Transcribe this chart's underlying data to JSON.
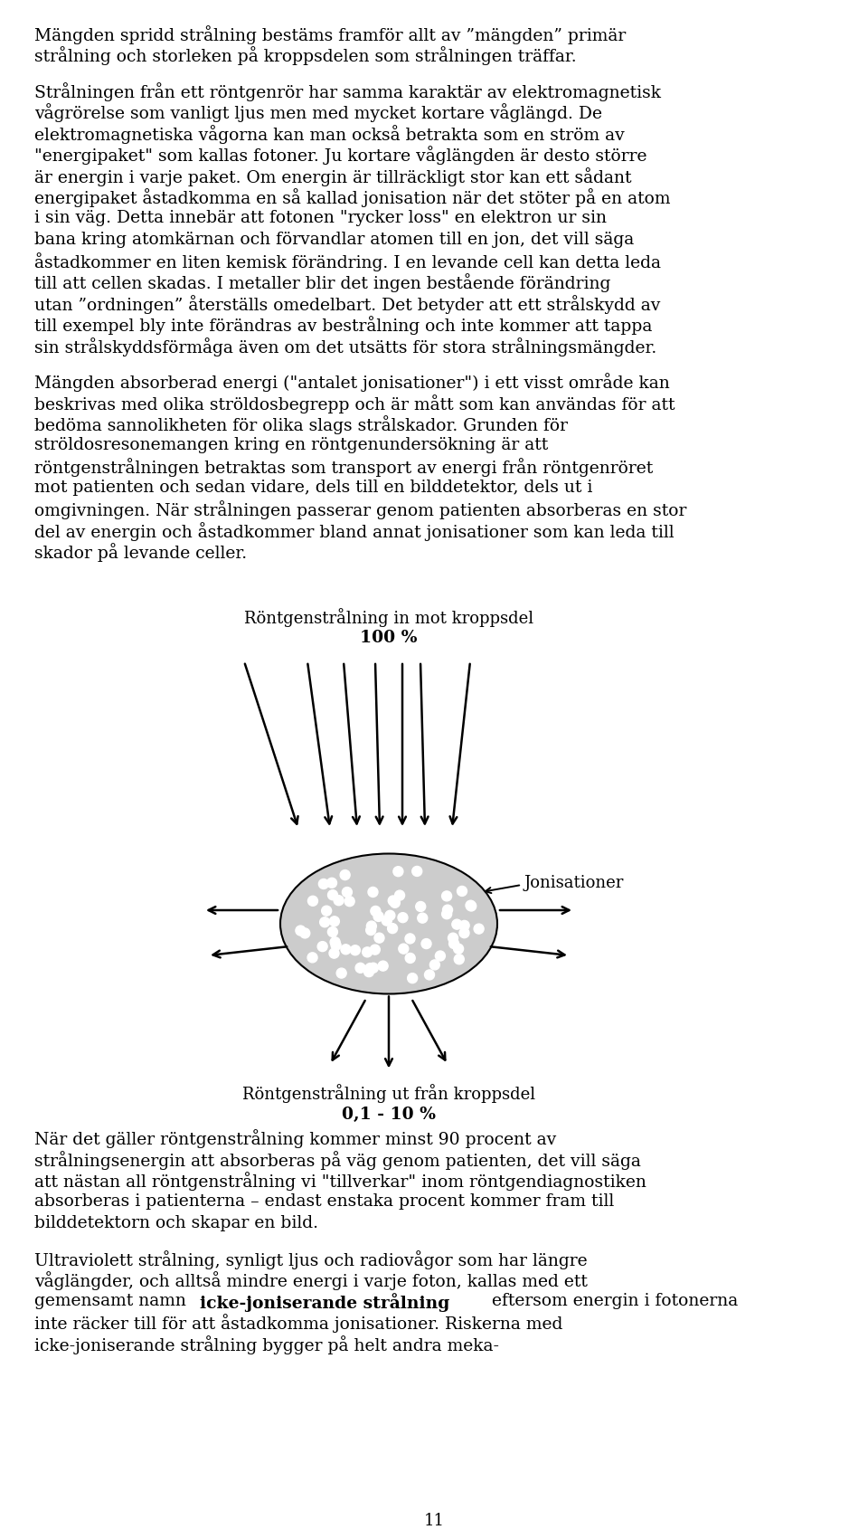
{
  "bg_color": "#ffffff",
  "text_color": "#000000",
  "page_number": "11",
  "para1": "Mängden spridd strålning bestäms framför allt av ”mängden” primär strålning och storleken på kroppsdelen som strålningen träffar.",
  "para2": "Strålningen från ett röntgenrör har samma karaktär av elektromagnetisk vågrörelse som vanligt ljus men med mycket kortare våglängd. De elektromagnetiska vågorna kan man också betrakta som en ström av \"energipaket\" som kallas fotoner. Ju kortare våglängden är desto större är energin i varje paket. Om energin är tillräckligt stor kan ett sådant energipaket åstadkomma en så kallad jonisation när det stöter på en atom i sin väg. Detta innebär att fotonen \"rycker loss\" en elektron ur sin bana kring atomkärnan och förvandlar atomen till en jon, det vill säga åstadkommer en liten kemisk förändring. I en levande cell kan detta leda till att cellen skadas. I metaller blir det ingen bestående förändring utan ”ordningen” återställs omedelbart. Det betyder att ett strålskydd av till exempel bly inte förändras av bestrålning och inte kommer att tappa sin strålskyddsförmåga även om det utsätts för stora strålningsmängder.",
  "para3": "Mängden absorberad energi (\"antalet jonisationer\") i ett visst område kan beskrivas med olika ströldosbegrepp och är mått som kan användas för att bedöma sannolikheten för olika slags strålskador. Grunden för ströldosresonemangen kring en röntgenundersökning är att röntgenstrålningen betraktas som transport av energi från röntgenröret mot patienten och sedan vidare, dels till en bilddetektor, dels ut i omgivningen. När strålningen passerar genom patienten absorberas en stor del av energin och åstadkommer bland annat jonisationer som kan leda till skador på levande celler.",
  "diag_top1": "Röntgenstrålning in mot kroppsdel",
  "diag_top2": "100 %",
  "diag_bot1": "Röntgenstrålning ut från kroppsdel",
  "diag_bot2": "0,1 - 10 %",
  "jonisationer": "Jonisationer",
  "para4": "När det gäller röntgenstrålning kommer minst 90 procent av strålningsenergin att absorberas på väg genom patienten, det vill säga att nästan all röntgenstrålning vi \"tillverkar\" inom röntgendiagnostiken absorberas i patienterna – endast enstaka procent kommer fram till bilddetektorn och skapar en bild.",
  "para5_pre": "Ultraviolett strålning, synligt ljus och radiovågor som har längre våglängder, och alltså mindre energi i varje foton, kallas med ett gemensamt namn ",
  "para5_bold1": "icke-joniserande",
  "para5_bold2": "strålning",
  "para5_post": " eftersom energin i fotonerna inte räcker till för att åstadkomma jonisationer. Riskerna med icke-joniserande strålning bygger på helt andra meka-",
  "ellipse_fill": "#cccccc",
  "ellipse_edge": "#000000",
  "dot_fill": "#ffffff",
  "lm": 38,
  "rm": 928,
  "fs": 13.5,
  "lh": 23.5,
  "pg": 16
}
